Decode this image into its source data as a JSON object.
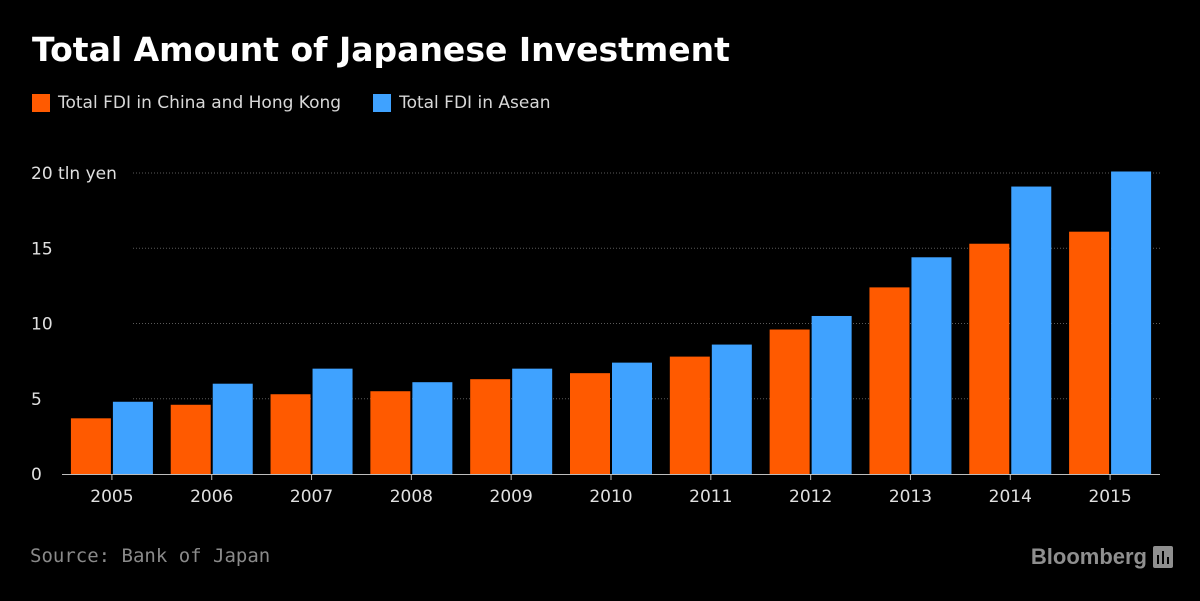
{
  "chart_data": {
    "type": "bar",
    "title": "Total Amount of Japanese Investment",
    "categories": [
      "2005",
      "2006",
      "2007",
      "2008",
      "2009",
      "2010",
      "2011",
      "2012",
      "2013",
      "2014",
      "2015"
    ],
    "series": [
      {
        "name": "Total FDI in China and Hong Kong",
        "color": "#ff5a00",
        "values": [
          3.7,
          4.6,
          5.3,
          5.5,
          6.3,
          6.7,
          7.8,
          9.6,
          12.4,
          15.3,
          16.1
        ]
      },
      {
        "name": "Total FDI in Asean",
        "color": "#3fa2ff",
        "values": [
          4.8,
          6.0,
          7.0,
          6.1,
          7.0,
          7.4,
          8.6,
          10.5,
          14.4,
          19.1,
          20.1
        ]
      }
    ],
    "y_ticks": [
      0,
      5,
      10,
      15,
      20
    ],
    "y_tick_labels": [
      "0",
      "5",
      "10",
      "15",
      "20 tln yen"
    ],
    "ylim": [
      0,
      20
    ],
    "xlabel": "",
    "ylabel": "tln yen",
    "grid": true,
    "legend_position": "top-left"
  },
  "source": "Source: Bank of Japan",
  "brand": "Bloomberg"
}
